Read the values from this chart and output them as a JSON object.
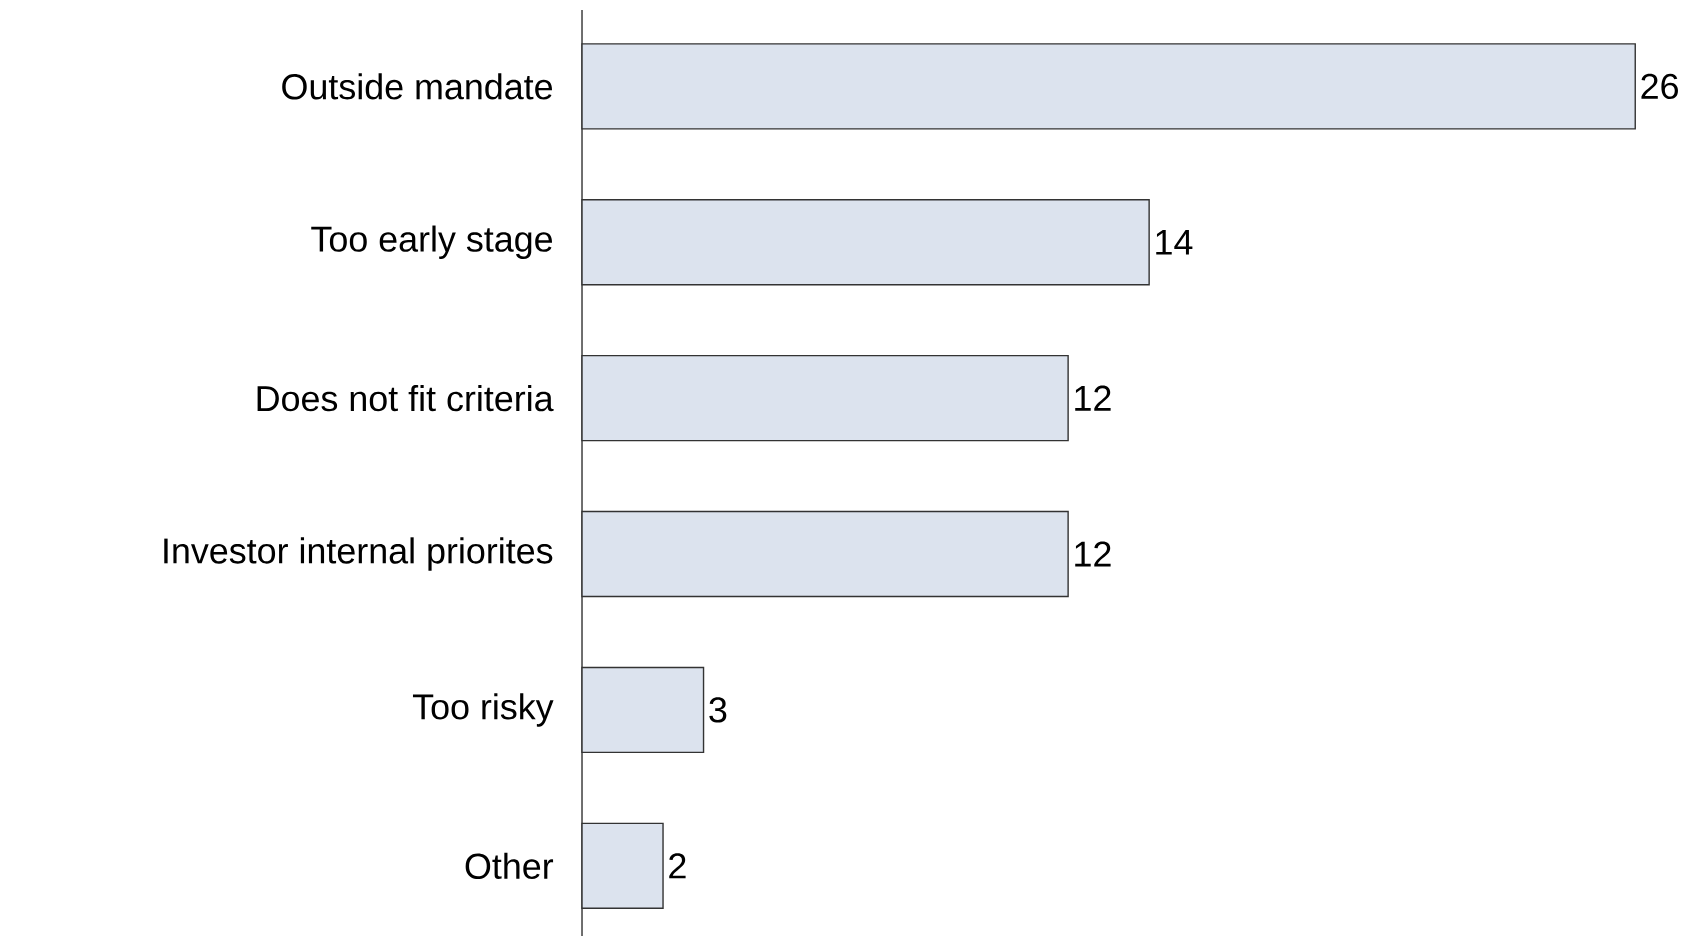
{
  "chart_data": {
    "type": "bar",
    "orientation": "horizontal",
    "categories": [
      "Outside mandate",
      "Too early stage",
      "Does not fit criteria",
      "Investor internal priorites",
      "Too risky",
      "Other"
    ],
    "values": [
      26,
      14,
      12,
      12,
      3,
      2
    ],
    "color": "#dce3ee",
    "data_labels": true
  }
}
